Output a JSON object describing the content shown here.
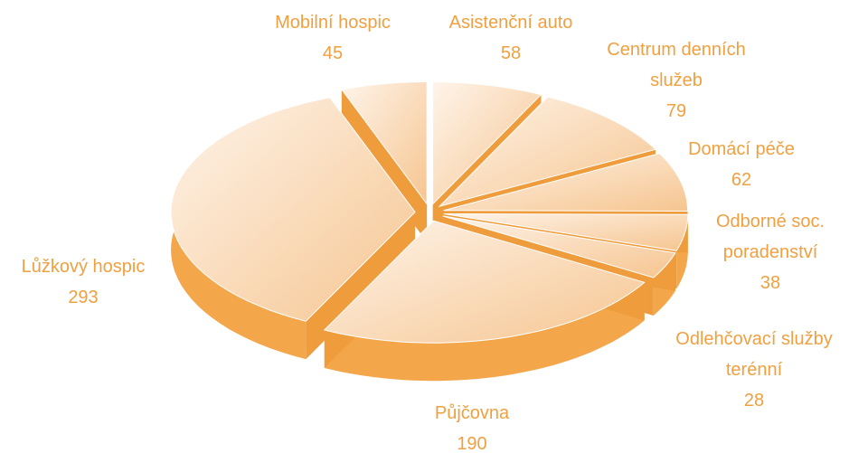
{
  "chart_data": {
    "type": "pie",
    "categories": [
      "Asistenční auto",
      "Centrum denních služeb",
      "Domácí péče",
      "Odborné soc. poradenství",
      "Odlehčovací služby terénní",
      "Půjčovna",
      "Lůžkový hospic",
      "Mobilní hospic"
    ],
    "values": [
      58,
      79,
      62,
      38,
      28,
      190,
      293,
      45
    ],
    "color": "#f4a64a"
  }
}
